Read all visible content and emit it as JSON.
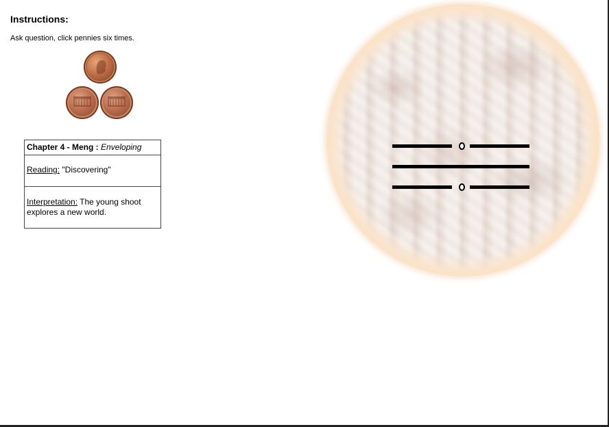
{
  "instructions": {
    "title": "Instructions:",
    "text": "Ask question, click pennies six times."
  },
  "pennies": [
    {
      "name": "penny-1",
      "face": "heads"
    },
    {
      "name": "penny-2",
      "face": "tails"
    },
    {
      "name": "penny-3",
      "face": "tails"
    }
  ],
  "chapter": {
    "title": "Chapter 4 - Meng :",
    "name": "Enveloping",
    "reading_label": "Reading:",
    "reading_text": "\"Discovering\"",
    "interpretation_label": "Interpretation:",
    "interpretation_text": "The young shoot explores a new world."
  },
  "hexagram": {
    "lines_top_to_bottom": [
      "broken-changing",
      "solid",
      "broken-changing"
    ]
  },
  "colors": {
    "penny": "#b8694a",
    "orb_rim": "#fbe3c8",
    "line": "#000000"
  }
}
